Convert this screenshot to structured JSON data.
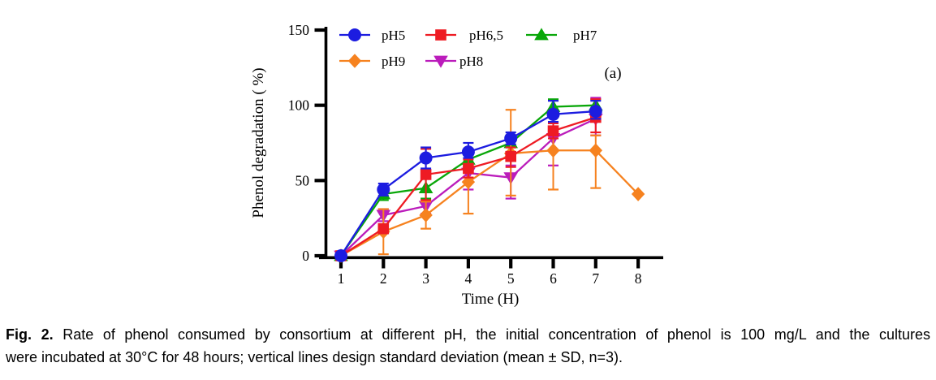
{
  "figure": {
    "panel_label": "(a)",
    "caption": {
      "label": "Fig. 2.",
      "line1_rest": "Rate of phenol consumed by consortium at different pH, the initial concentration of phenol is 100 mg/L and the cultures",
      "line2": "were incubated at 30°C for 48 hours; vertical lines design standard deviation (mean ± SD, n=3)."
    }
  },
  "chart_data": {
    "type": "line",
    "title": "",
    "xlabel": "Time (H)",
    "ylabel": "Phenol degradation ( %)",
    "x_ticks": [
      1,
      2,
      3,
      4,
      5,
      6,
      7,
      8
    ],
    "y_ticks": [
      0,
      50,
      100,
      150
    ],
    "xlim": [
      0.6,
      8.6
    ],
    "ylim": [
      0,
      150
    ],
    "grid": false,
    "legend_position": "inside-top-left",
    "axis_color": "#000000",
    "series": [
      {
        "name": "pH5",
        "color": "#1c1ce0",
        "marker": "circle",
        "x": [
          1,
          2,
          3,
          4,
          5,
          6,
          7
        ],
        "values": [
          0,
          44,
          65,
          69,
          78,
          94,
          96
        ],
        "err_up": [
          0,
          4,
          7,
          6,
          4,
          9,
          7
        ],
        "err_down": [
          0,
          4,
          7,
          4,
          4,
          5,
          5
        ]
      },
      {
        "name": "pH6,5",
        "color": "#ee1b23",
        "marker": "square",
        "x": [
          1,
          2,
          3,
          4,
          5,
          6,
          7
        ],
        "values": [
          0,
          18,
          54,
          58,
          66,
          83,
          92
        ],
        "err_up": [
          0,
          3,
          17,
          6,
          6,
          5,
          12
        ],
        "err_down": [
          0,
          3,
          17,
          6,
          7,
          5,
          10
        ]
      },
      {
        "name": "pH7",
        "color": "#09a709",
        "marker": "triangle-up",
        "x": [
          1,
          2,
          3,
          4,
          5,
          6,
          7
        ],
        "values": [
          0,
          41,
          45,
          64,
          75,
          99,
          100
        ],
        "err_up": [
          0,
          2,
          7,
          3,
          3,
          5,
          4
        ],
        "err_down": [
          0,
          4,
          7,
          3,
          3,
          4,
          4
        ]
      },
      {
        "name": "pH9",
        "color": "#f6821f",
        "marker": "diamond",
        "x": [
          1,
          2,
          3,
          4,
          5,
          6,
          7,
          8
        ],
        "values": [
          0,
          16,
          27,
          49,
          68,
          70,
          70,
          41
        ],
        "err_up": [
          0,
          15,
          9,
          10,
          29,
          25,
          10,
          0
        ],
        "err_down": [
          0,
          15,
          9,
          21,
          28,
          26,
          25,
          0
        ]
      },
      {
        "name": "pH8",
        "color": "#bb1cbb",
        "marker": "triangle-down",
        "x": [
          1,
          2,
          3,
          4,
          5,
          6,
          7
        ],
        "values": [
          0,
          27,
          33,
          55,
          52,
          78,
          91
        ],
        "err_up": [
          0,
          4,
          3,
          4,
          8,
          8,
          14
        ],
        "err_down": [
          0,
          4,
          5,
          11,
          14,
          18,
          11
        ]
      }
    ]
  }
}
